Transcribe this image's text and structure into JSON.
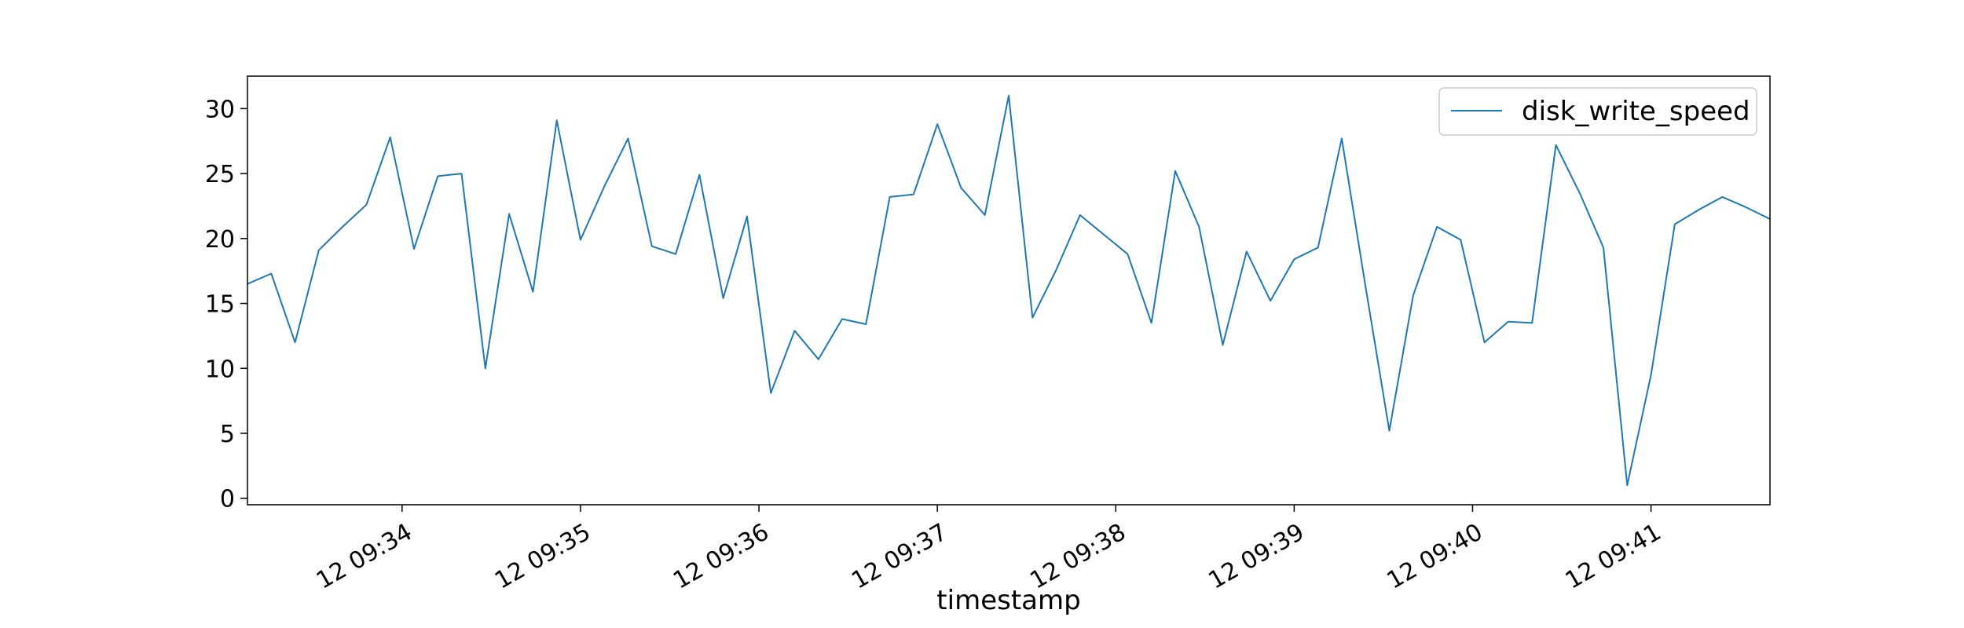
{
  "chart_data": {
    "type": "line",
    "title": "",
    "xlabel": "timestamp",
    "ylabel": "",
    "x_tick_labels": [
      "12 09:34",
      "12 09:35",
      "12 09:36",
      "12 09:37",
      "12 09:38",
      "12 09:39",
      "12 09:40",
      "12 09:41"
    ],
    "x_tick_times": [
      "09:34:00",
      "09:35:00",
      "09:36:00",
      "09:37:00",
      "09:38:00",
      "09:39:00",
      "09:40:00",
      "09:41:00"
    ],
    "xlim": [
      "09:33:08",
      "09:41:40"
    ],
    "y_ticks": [
      0,
      5,
      10,
      15,
      20,
      25,
      30
    ],
    "y_tick_labels": [
      "0",
      "5",
      "10",
      "15",
      "20",
      "25",
      "30"
    ],
    "ylim": [
      -0.5,
      32.5
    ],
    "grid": false,
    "legend": {
      "position": "top-right",
      "entries": [
        "disk_write_speed"
      ]
    },
    "series": [
      {
        "name": "disk_write_speed",
        "color": "#1f77b4",
        "x": [
          "09:33:08",
          "09:33:16",
          "09:33:24",
          "09:33:32",
          "09:33:40",
          "09:33:48",
          "09:33:56",
          "09:34:04",
          "09:34:12",
          "09:34:20",
          "09:34:28",
          "09:34:36",
          "09:34:44",
          "09:34:52",
          "09:35:00",
          "09:35:08",
          "09:35:16",
          "09:35:24",
          "09:35:32",
          "09:35:40",
          "09:35:48",
          "09:35:56",
          "09:36:04",
          "09:36:12",
          "09:36:20",
          "09:36:28",
          "09:36:36",
          "09:36:44",
          "09:36:52",
          "09:37:00",
          "09:37:08",
          "09:37:16",
          "09:37:24",
          "09:37:32",
          "09:37:40",
          "09:37:48",
          "09:37:56",
          "09:38:04",
          "09:38:12",
          "09:38:20",
          "09:38:28",
          "09:38:36",
          "09:38:44",
          "09:38:52",
          "09:39:00",
          "09:39:08",
          "09:39:16",
          "09:39:24",
          "09:39:32",
          "09:39:40",
          "09:39:48",
          "09:39:56",
          "09:40:04",
          "09:40:12",
          "09:40:20",
          "09:40:28",
          "09:40:36",
          "09:40:44",
          "09:40:52",
          "09:41:00",
          "09:41:08",
          "09:41:16",
          "09:41:24",
          "09:41:32",
          "09:41:40"
        ],
        "y": [
          16.5,
          17.3,
          12.0,
          19.1,
          20.9,
          22.6,
          27.8,
          19.2,
          24.8,
          25.0,
          10.0,
          21.9,
          15.9,
          29.1,
          19.9,
          24.0,
          27.7,
          19.4,
          18.8,
          24.9,
          15.4,
          21.7,
          8.1,
          12.9,
          10.7,
          13.8,
          13.4,
          23.2,
          23.4,
          28.8,
          23.9,
          21.8,
          31.0,
          13.9,
          17.6,
          21.8,
          20.3,
          18.8,
          13.5,
          25.2,
          20.9,
          11.8,
          19.0,
          15.2,
          18.4,
          19.3,
          27.7,
          16.3,
          5.2,
          15.6,
          20.9,
          19.9,
          12.0,
          13.6,
          13.5,
          27.2,
          23.5,
          19.3,
          1.0,
          9.5,
          21.1,
          22.2,
          23.2,
          22.4,
          21.5
        ]
      }
    ]
  }
}
